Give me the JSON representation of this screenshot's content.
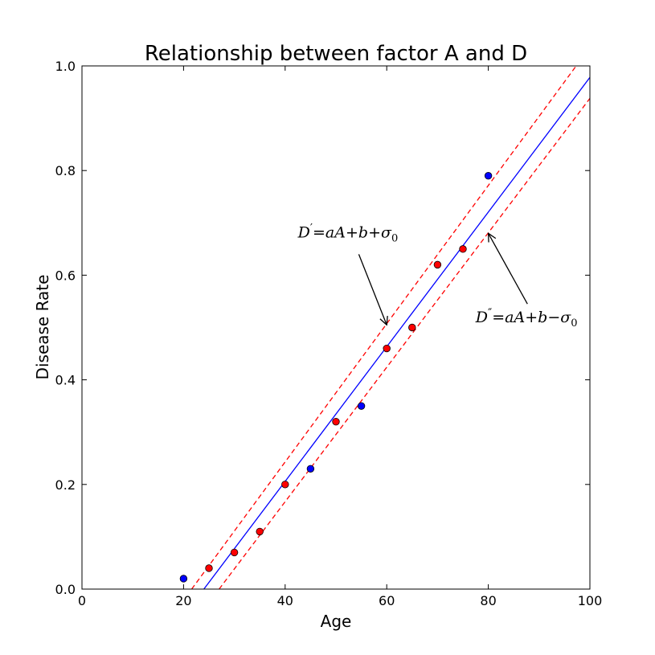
{
  "chart_data": {
    "type": "scatter",
    "title": "Relationship between factor A and D",
    "xlabel": "Age",
    "ylabel": "Disease Rate",
    "xlim": [
      0,
      100
    ],
    "ylim": [
      0.0,
      1.0
    ],
    "xticks": [
      "0",
      "20",
      "40",
      "60",
      "80",
      "100"
    ],
    "yticks": [
      "0.0",
      "0.2",
      "0.4",
      "0.6",
      "0.8",
      "1.0"
    ],
    "grid": false,
    "series": [
      {
        "color": "#0000ff",
        "marker": "circle",
        "points": [
          {
            "x": 20,
            "y": 0.02
          },
          {
            "x": 45,
            "y": 0.23
          },
          {
            "x": 55,
            "y": 0.35
          },
          {
            "x": 80,
            "y": 0.79
          }
        ]
      },
      {
        "color": "#ff0000",
        "marker": "circle",
        "points": [
          {
            "x": 25,
            "y": 0.04
          },
          {
            "x": 30,
            "y": 0.07
          },
          {
            "x": 35,
            "y": 0.11
          },
          {
            "x": 40,
            "y": 0.2
          },
          {
            "x": 50,
            "y": 0.32
          },
          {
            "x": 60,
            "y": 0.46
          },
          {
            "x": 65,
            "y": 0.5
          },
          {
            "x": 70,
            "y": 0.62
          },
          {
            "x": 75,
            "y": 0.65
          }
        ]
      }
    ],
    "lines": [
      {
        "style": "solid",
        "color": "#0000ff",
        "from": {
          "x": 24,
          "y": 0.0
        },
        "to": {
          "x": 100,
          "y": 0.978
        }
      },
      {
        "style": "dashed",
        "color": "#ff0000",
        "from": {
          "x": 21.6,
          "y": 0.0
        },
        "to": {
          "x": 97.3,
          "y": 1.0
        }
      },
      {
        "style": "dashed",
        "color": "#ff0000",
        "from": {
          "x": 27.0,
          "y": 0.0
        },
        "to": {
          "x": 100,
          "y": 0.938
        }
      }
    ],
    "annotations": [
      {
        "id": "upper",
        "label_main": "D",
        "label_sup": "′",
        "label_rest": "=aA+b+σ",
        "label_sub": "0",
        "text_at": {
          "x": 42.5,
          "y": 0.672
        },
        "arrow_from": {
          "x": 54.5,
          "y": 0.64
        },
        "arrow_to": {
          "x": 60.0,
          "y": 0.505
        }
      },
      {
        "id": "lower",
        "label_main": "D",
        "label_sup": "″",
        "label_rest": "=aA+b−σ",
        "label_sub": "0",
        "text_at": {
          "x": 77.5,
          "y": 0.51
        },
        "arrow_from": {
          "x": 87.7,
          "y": 0.545
        },
        "arrow_to": {
          "x": 80.0,
          "y": 0.68
        }
      }
    ]
  }
}
